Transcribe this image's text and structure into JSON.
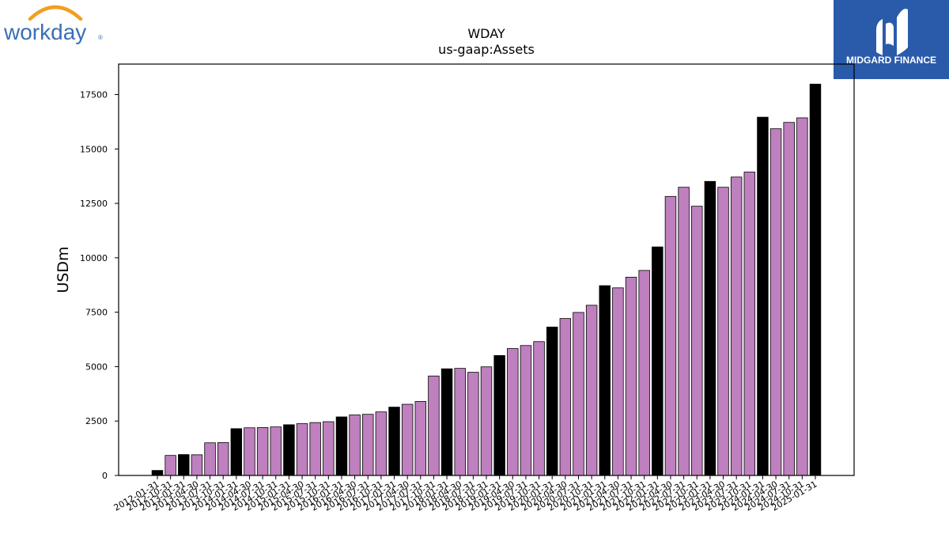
{
  "branding": {
    "left_logo_text": "workday",
    "right_logo_text": "MIDGARD FINANCE",
    "right_logo_bg": "#2a5bab"
  },
  "colors": {
    "annual_bar": "#000000",
    "quarter_bar": "#bf80bf",
    "bar_edge": "#000000"
  },
  "chart_data": {
    "type": "bar",
    "title": "WDAY",
    "subtitle": "us-gaap:Assets",
    "xlabel": "",
    "ylabel": "USDm",
    "ylim": [
      0,
      18900
    ],
    "yticks": [
      0,
      2500,
      5000,
      7500,
      10000,
      12500,
      15000,
      17500
    ],
    "categories": [
      "2012-01-31",
      "2012-10-31",
      "2013-01-31",
      "2013-04-30",
      "2013-07-31",
      "2013-10-31",
      "2014-01-31",
      "2014-04-30",
      "2014-07-31",
      "2014-10-31",
      "2015-01-31",
      "2015-04-30",
      "2015-07-31",
      "2015-10-31",
      "2016-01-31",
      "2016-04-30",
      "2016-07-31",
      "2016-10-31",
      "2017-01-31",
      "2017-04-30",
      "2017-07-31",
      "2017-10-31",
      "2018-01-31",
      "2018-04-30",
      "2018-07-31",
      "2018-10-31",
      "2019-01-31",
      "2019-04-30",
      "2019-07-31",
      "2019-10-31",
      "2020-01-31",
      "2020-04-30",
      "2020-07-31",
      "2020-10-31",
      "2021-01-31",
      "2021-04-30",
      "2021-07-31",
      "2021-10-31",
      "2022-01-31",
      "2022-04-30",
      "2022-07-31",
      "2022-10-31",
      "2023-01-31",
      "2023-04-30",
      "2023-07-31",
      "2023-10-31",
      "2024-01-31",
      "2024-04-30",
      "2024-07-31",
      "2024-10-31",
      "2025-01-31"
    ],
    "values": [
      230,
      920,
      960,
      950,
      1500,
      1510,
      2150,
      2190,
      2200,
      2230,
      2330,
      2380,
      2430,
      2470,
      2690,
      2780,
      2810,
      2920,
      3140,
      3270,
      3400,
      4570,
      4900,
      4920,
      4740,
      4990,
      5510,
      5830,
      5970,
      6150,
      6820,
      7210,
      7490,
      7820,
      8720,
      8620,
      9110,
      9420,
      10500,
      12820,
      13240,
      12370,
      13510,
      13240,
      13710,
      13940,
      16460,
      15930,
      16220,
      16430,
      17980
    ],
    "annual_flags": [
      true,
      false,
      true,
      false,
      false,
      false,
      true,
      false,
      false,
      false,
      true,
      false,
      false,
      false,
      true,
      false,
      false,
      false,
      true,
      false,
      false,
      false,
      true,
      false,
      false,
      false,
      true,
      false,
      false,
      false,
      true,
      false,
      false,
      false,
      true,
      false,
      false,
      false,
      true,
      false,
      false,
      false,
      true,
      false,
      false,
      false,
      true,
      false,
      false,
      false,
      true
    ],
    "grid": false,
    "legend": "none"
  }
}
